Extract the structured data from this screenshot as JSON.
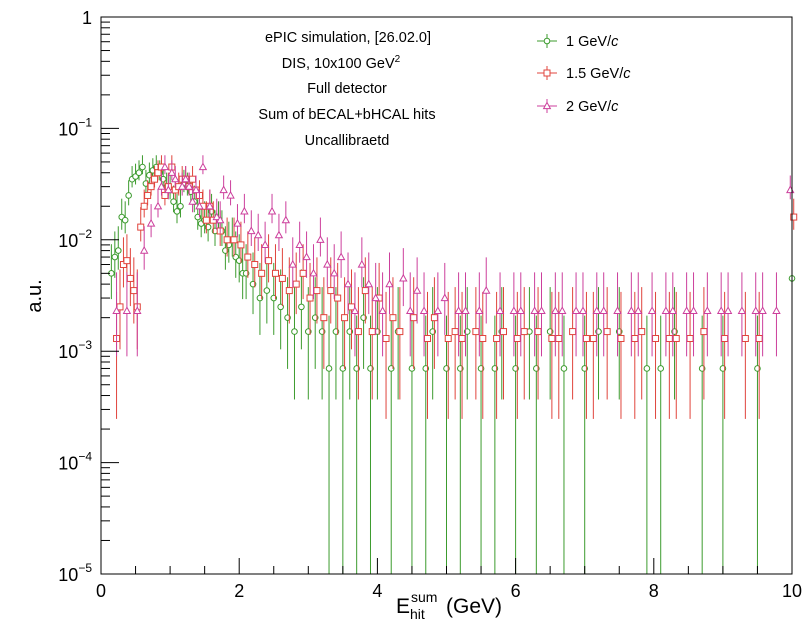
{
  "chart_data": {
    "type": "scatter",
    "title": "",
    "xlabel": {
      "base": "E",
      "sub": "hit",
      "sup": "sum",
      "unit": "(GeV)"
    },
    "ylabel": "a.u.",
    "xlim": [
      0,
      10
    ],
    "ylim": [
      1e-05,
      1
    ],
    "yscale": "log",
    "grid": false,
    "x_ticks": [
      "0",
      "2",
      "4",
      "6",
      "8",
      "10"
    ],
    "y_ticks": [
      {
        "value": 1,
        "base": "1",
        "exp": ""
      },
      {
        "value": 0.1,
        "base": "10",
        "exp": "−1"
      },
      {
        "value": 0.01,
        "base": "10",
        "exp": "−2"
      },
      {
        "value": 0.001,
        "base": "10",
        "exp": "−3"
      },
      {
        "value": 0.0001,
        "base": "10",
        "exp": "−4"
      },
      {
        "value": 1e-05,
        "base": "10",
        "exp": "−5"
      }
    ],
    "annotations": [
      {
        "text": "ePIC simulation, [26.02.0]"
      },
      {
        "text": "DIS, 10x100 GeV",
        "sup": "2"
      },
      {
        "text": "Full detector"
      },
      {
        "text": "Sum of bECAL+bHCAL hits"
      },
      {
        "text": "Uncallibraetd"
      }
    ],
    "legend_position": "top-right",
    "series": [
      {
        "name": "1 GeV/",
        "name_italic": "c",
        "color": "#3c9b2e",
        "marker": "circle",
        "x": [
          0.15,
          0.2,
          0.25,
          0.3,
          0.35,
          0.4,
          0.45,
          0.5,
          0.55,
          0.6,
          0.65,
          0.7,
          0.75,
          0.8,
          0.85,
          0.9,
          0.95,
          1.0,
          1.05,
          1.1,
          1.15,
          1.2,
          1.25,
          1.3,
          1.35,
          1.4,
          1.45,
          1.5,
          1.55,
          1.6,
          1.65,
          1.7,
          1.75,
          1.8,
          1.85,
          1.9,
          1.95,
          2.0,
          2.05,
          2.1,
          2.2,
          2.3,
          2.4,
          2.5,
          2.6,
          2.7,
          2.8,
          2.9,
          3.0,
          3.1,
          3.2,
          3.3,
          3.4,
          3.5,
          3.6,
          3.7,
          3.8,
          3.9,
          4.0,
          4.2,
          4.3,
          4.5,
          4.7,
          4.8,
          5.0,
          5.2,
          5.3,
          5.5,
          5.7,
          5.8,
          6.0,
          6.2,
          6.3,
          6.5,
          6.7,
          7.0,
          7.2,
          7.5,
          7.9,
          8.1,
          8.3,
          8.7,
          9.0,
          9.5,
          10.0
        ],
        "y": [
          0.005,
          0.007,
          0.008,
          0.016,
          0.015,
          0.025,
          0.035,
          0.037,
          0.04,
          0.045,
          0.032,
          0.038,
          0.042,
          0.045,
          0.04,
          0.035,
          0.03,
          0.028,
          0.022,
          0.018,
          0.02,
          0.032,
          0.03,
          0.027,
          0.022,
          0.016,
          0.014,
          0.015,
          0.013,
          0.018,
          0.012,
          0.015,
          0.012,
          0.008,
          0.009,
          0.01,
          0.007,
          0.0065,
          0.005,
          0.005,
          0.004,
          0.003,
          0.0035,
          0.003,
          0.0025,
          0.002,
          0.0015,
          0.0025,
          0.0015,
          0.002,
          0.0015,
          0.0007,
          0.0015,
          0.0007,
          0.0015,
          0.0007,
          0.002,
          0.0007,
          0.0015,
          0.0007,
          0.0015,
          0.0007,
          0.0007,
          0.0015,
          0.0007,
          0.0007,
          0.0015,
          0.0007,
          0.0007,
          0.0015,
          0.0007,
          0.0015,
          0.0007,
          0.0015,
          0.0007,
          0.0007,
          0.0015,
          0.0015,
          0.0007,
          0.0007,
          0.0015,
          0.0007,
          0.0007,
          0.0007,
          0.0045
        ]
      },
      {
        "name": "1.5 GeV/",
        "name_italic": "c",
        "color": "#e0443c",
        "marker": "square",
        "x": [
          0.2,
          0.25,
          0.3,
          0.35,
          0.4,
          0.45,
          0.5,
          0.55,
          0.6,
          0.65,
          0.7,
          0.75,
          0.8,
          0.85,
          0.9,
          0.95,
          1.0,
          1.05,
          1.1,
          1.15,
          1.2,
          1.25,
          1.3,
          1.35,
          1.4,
          1.45,
          1.5,
          1.55,
          1.6,
          1.7,
          1.8,
          1.9,
          2.0,
          2.1,
          2.2,
          2.3,
          2.4,
          2.5,
          2.6,
          2.7,
          2.8,
          2.9,
          3.0,
          3.1,
          3.2,
          3.3,
          3.4,
          3.5,
          3.6,
          3.7,
          3.8,
          3.9,
          4.0,
          4.1,
          4.2,
          4.3,
          4.5,
          4.7,
          4.8,
          5.0,
          5.1,
          5.2,
          5.4,
          5.5,
          5.7,
          5.8,
          6.0,
          6.1,
          6.3,
          6.5,
          6.6,
          6.8,
          7.0,
          7.1,
          7.3,
          7.5,
          7.7,
          7.8,
          8.0,
          8.2,
          8.3,
          8.5,
          8.7,
          9.0,
          9.3,
          9.5,
          10.0
        ],
        "y": [
          0.0013,
          0.0025,
          0.006,
          0.0065,
          0.0045,
          0.0035,
          0.0025,
          0.013,
          0.02,
          0.025,
          0.03,
          0.035,
          0.04,
          0.045,
          0.025,
          0.03,
          0.045,
          0.028,
          0.03,
          0.035,
          0.035,
          0.03,
          0.035,
          0.028,
          0.025,
          0.02,
          0.015,
          0.02,
          0.015,
          0.012,
          0.01,
          0.01,
          0.009,
          0.007,
          0.006,
          0.005,
          0.0065,
          0.005,
          0.0045,
          0.0035,
          0.004,
          0.005,
          0.003,
          0.0035,
          0.002,
          0.0035,
          0.003,
          0.002,
          0.0025,
          0.0015,
          0.0035,
          0.0015,
          0.003,
          0.0013,
          0.002,
          0.0015,
          0.002,
          0.0013,
          0.002,
          0.0013,
          0.0015,
          0.0013,
          0.0015,
          0.0013,
          0.0013,
          0.0015,
          0.0013,
          0.0015,
          0.0015,
          0.0013,
          0.0013,
          0.0015,
          0.0013,
          0.0013,
          0.0015,
          0.0013,
          0.0013,
          0.0015,
          0.0013,
          0.0013,
          0.0013,
          0.0013,
          0.0015,
          0.0013,
          0.0013,
          0.0013,
          0.016
        ]
      },
      {
        "name": "2 GeV/",
        "name_italic": "c",
        "color": "#cc3f9c",
        "marker": "triangle",
        "x": [
          0.25,
          0.4,
          0.55,
          0.65,
          0.75,
          0.85,
          0.9,
          0.95,
          1.0,
          1.05,
          1.1,
          1.2,
          1.25,
          1.3,
          1.35,
          1.4,
          1.45,
          1.5,
          1.6,
          1.7,
          1.75,
          1.8,
          1.9,
          2.0,
          2.1,
          2.2,
          2.3,
          2.4,
          2.5,
          2.6,
          2.7,
          2.8,
          2.9,
          3.0,
          3.1,
          3.2,
          3.3,
          3.4,
          3.5,
          3.6,
          3.7,
          3.8,
          3.9,
          4.0,
          4.1,
          4.2,
          4.4,
          4.5,
          4.6,
          4.7,
          4.9,
          5.0,
          5.2,
          5.3,
          5.5,
          5.6,
          5.8,
          6.0,
          6.1,
          6.3,
          6.4,
          6.6,
          6.7,
          6.9,
          7.0,
          7.2,
          7.3,
          7.5,
          7.7,
          7.8,
          8.0,
          8.2,
          8.3,
          8.5,
          8.6,
          8.8,
          9.0,
          9.1,
          9.3,
          9.5,
          9.6,
          9.8,
          10.0
        ],
        "y": [
          0.0023,
          0.0023,
          0.0023,
          0.008,
          0.014,
          0.02,
          0.03,
          0.045,
          0.028,
          0.04,
          0.035,
          0.03,
          0.035,
          0.03,
          0.022,
          0.028,
          0.02,
          0.045,
          0.02,
          0.016,
          0.015,
          0.028,
          0.025,
          0.014,
          0.018,
          0.012,
          0.011,
          0.009,
          0.018,
          0.011,
          0.015,
          0.006,
          0.009,
          0.007,
          0.005,
          0.01,
          0.006,
          0.005,
          0.007,
          0.004,
          0.0023,
          0.006,
          0.004,
          0.003,
          0.0023,
          0.004,
          0.0045,
          0.0023,
          0.0035,
          0.0023,
          0.0023,
          0.003,
          0.0023,
          0.0023,
          0.0023,
          0.0035,
          0.0023,
          0.0023,
          0.0023,
          0.0023,
          0.0023,
          0.0023,
          0.0023,
          0.0023,
          0.0023,
          0.0023,
          0.0023,
          0.0023,
          0.0023,
          0.0023,
          0.0023,
          0.0023,
          0.0023,
          0.0023,
          0.0023,
          0.0023,
          0.0023,
          0.0023,
          0.0023,
          0.0023,
          0.0023,
          0.0023,
          0.028
        ]
      }
    ]
  }
}
